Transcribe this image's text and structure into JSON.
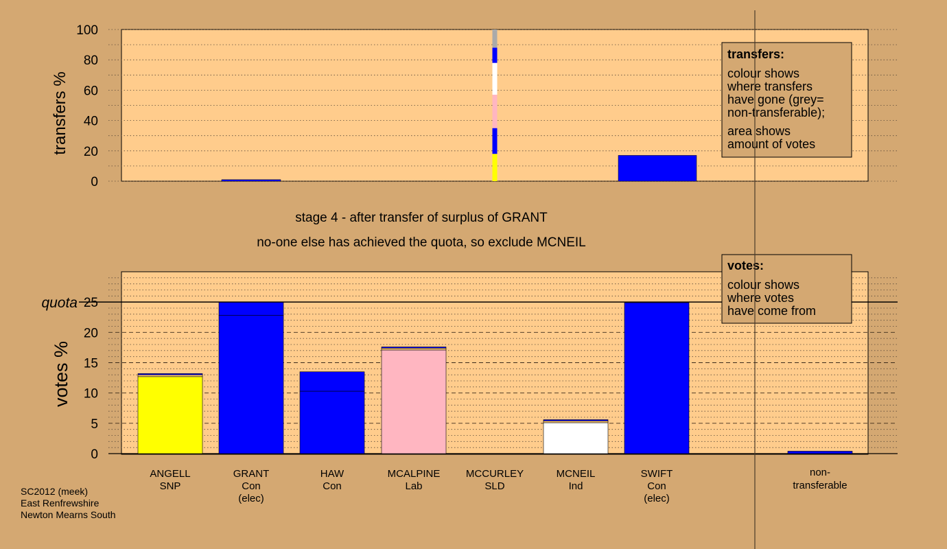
{
  "chart_data": [
    {
      "type": "bar",
      "id": "transfers",
      "ylabel": "transfers %",
      "ylim": [
        0,
        100
      ],
      "yticks": [
        0,
        20,
        40,
        60,
        80,
        100
      ],
      "grid": "dotted",
      "categories": [
        "ANGELL",
        "GRANT",
        "HAW",
        "MCALPINE",
        "MCCURLEY",
        "MCNEIL",
        "SWIFT",
        "non-transferable"
      ],
      "bars": [
        {
          "category": "HAW",
          "segments": [
            {
              "color": "#0000ff",
              "value": 1
            }
          ]
        },
        {
          "category": "MCNEIL",
          "width": "thin",
          "segments": [
            {
              "color": "#ffff00",
              "value": 18
            },
            {
              "color": "#0000ff",
              "value": 17
            },
            {
              "color": "#ffb6c1",
              "value": 22
            },
            {
              "color": "#ffffff",
              "value": 21
            },
            {
              "color": "#0000ff",
              "value": 10
            },
            {
              "color": "#aaaaaa",
              "value": 12
            }
          ]
        },
        {
          "category": "non-transferable",
          "segments": [
            {
              "color": "#0000ff",
              "value": 17
            }
          ]
        }
      ]
    },
    {
      "type": "bar",
      "id": "votes",
      "ylabel": "votes %",
      "ylim": [
        0,
        30
      ],
      "yticks": [
        0,
        5,
        10,
        15,
        20,
        25
      ],
      "quota": 25,
      "quota_label": "quota",
      "grid": "dashed",
      "categories": [
        "ANGELL",
        "GRANT",
        "HAW",
        "MCALPINE",
        "MCCURLEY",
        "MCNEIL",
        "SWIFT",
        "",
        "non-transferable"
      ],
      "bars": [
        {
          "category": "ANGELL",
          "segments": [
            {
              "color": "#ffff00",
              "value": 12.7
            },
            {
              "color": "#ffcc80",
              "value": 0.3
            },
            {
              "color": "#0000ff",
              "value": 0.2
            }
          ]
        },
        {
          "category": "GRANT",
          "segments": [
            {
              "color": "#0000ff",
              "value": 22.8
            },
            {
              "color": "#0000ff",
              "value": 2.2
            }
          ]
        },
        {
          "category": "HAW",
          "segments": [
            {
              "color": "#0000ff",
              "value": 10.3
            },
            {
              "color": "#0000ff",
              "value": 3.2
            }
          ]
        },
        {
          "category": "MCALPINE",
          "segments": [
            {
              "color": "#ffb6c1",
              "value": 17.1
            },
            {
              "color": "#ffcc80",
              "value": 0.3
            },
            {
              "color": "#0000ff",
              "value": 0.2
            }
          ]
        },
        {
          "category": "MCCURLEY",
          "segments": []
        },
        {
          "category": "MCNEIL",
          "segments": [
            {
              "color": "#ffffff",
              "value": 5.1
            },
            {
              "color": "#ffcc80",
              "value": 0.3
            },
            {
              "color": "#0000ff",
              "value": 0.2
            }
          ]
        },
        {
          "category": "SWIFT",
          "segments": [
            {
              "color": "#0000ff",
              "value": 24.9
            }
          ]
        },
        {
          "category": "",
          "segments": []
        },
        {
          "category": "non-transferable",
          "segments": [
            {
              "color": "#0000ff",
              "value": 0.4
            }
          ]
        }
      ]
    }
  ],
  "candidates": [
    {
      "name": "ANGELL",
      "party": "SNP",
      "status": ""
    },
    {
      "name": "GRANT",
      "party": "Con",
      "status": "(elec)"
    },
    {
      "name": "HAW",
      "party": "Con",
      "status": ""
    },
    {
      "name": "MCALPINE",
      "party": "Lab",
      "status": ""
    },
    {
      "name": "MCCURLEY",
      "party": "SLD",
      "status": ""
    },
    {
      "name": "MCNEIL",
      "party": "Ind",
      "status": ""
    },
    {
      "name": "SWIFT",
      "party": "Con",
      "status": "(elec)"
    }
  ],
  "nontransferable_label": [
    "non-",
    "transferable"
  ],
  "stage_line1": "stage 4 - after transfer of surplus of GRANT",
  "stage_line2": "no-one else has achieved the quota, so exclude MCNEIL",
  "transfers_box": {
    "title": "transfers:",
    "lines1": [
      "colour shows",
      "where transfers",
      "have gone (grey=",
      "non-transferable);"
    ],
    "lines2": [
      "area shows",
      "amount of votes"
    ]
  },
  "votes_box": {
    "title": "votes:",
    "lines": [
      "colour shows",
      "where votes",
      "have come from"
    ]
  },
  "footer": [
    "SC2012 (meek)",
    "East Renfrewshire",
    "Newton Mearns South"
  ],
  "colors": {
    "background": "#d4a872",
    "panel": "#ffcc8c",
    "con": "#0000ff",
    "snp": "#ffff00",
    "lab": "#ffb6c1",
    "ind": "#ffffff",
    "nontransferable": "#aaaaaa"
  }
}
